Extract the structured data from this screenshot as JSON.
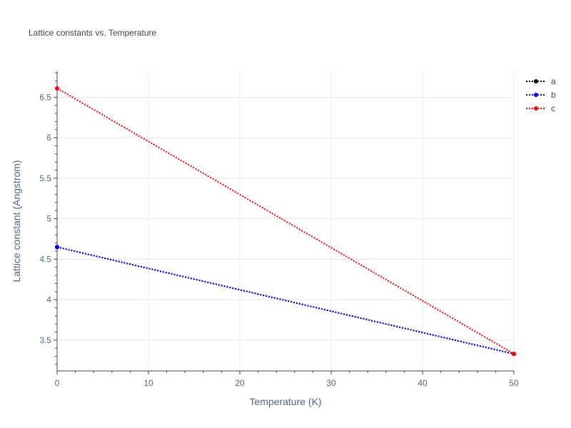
{
  "chart_data": {
    "type": "line",
    "title": "Lattice constants vs. Temperature",
    "xlabel": "Temperature (K)",
    "ylabel": "Lattice constant (Angstrom)",
    "xlim": [
      0,
      50
    ],
    "ylim": [
      3.12,
      6.82
    ],
    "x_ticks": [
      0,
      10,
      20,
      30,
      40,
      50
    ],
    "y_ticks": [
      3.5,
      4,
      4.5,
      5,
      5.5,
      6,
      6.5
    ],
    "x_tick_labels": [
      "0",
      "10",
      "20",
      "30",
      "40",
      "50"
    ],
    "y_tick_labels": [
      "3.5",
      "4",
      "4.5",
      "5",
      "5.5",
      "6",
      "6.5"
    ],
    "grid": true,
    "legend_position": "top-right",
    "series": [
      {
        "name": "a",
        "color": "#000000",
        "line_style": "dotted",
        "x": [
          0,
          50
        ],
        "y": [
          4.65,
          3.33
        ]
      },
      {
        "name": "b",
        "color": "#0000ff",
        "line_style": "dotted",
        "x": [
          0,
          50
        ],
        "y": [
          4.65,
          3.33
        ]
      },
      {
        "name": "c",
        "color": "#ff0000",
        "line_style": "dotted",
        "x": [
          0,
          50
        ],
        "y": [
          6.61,
          3.33
        ]
      }
    ]
  }
}
